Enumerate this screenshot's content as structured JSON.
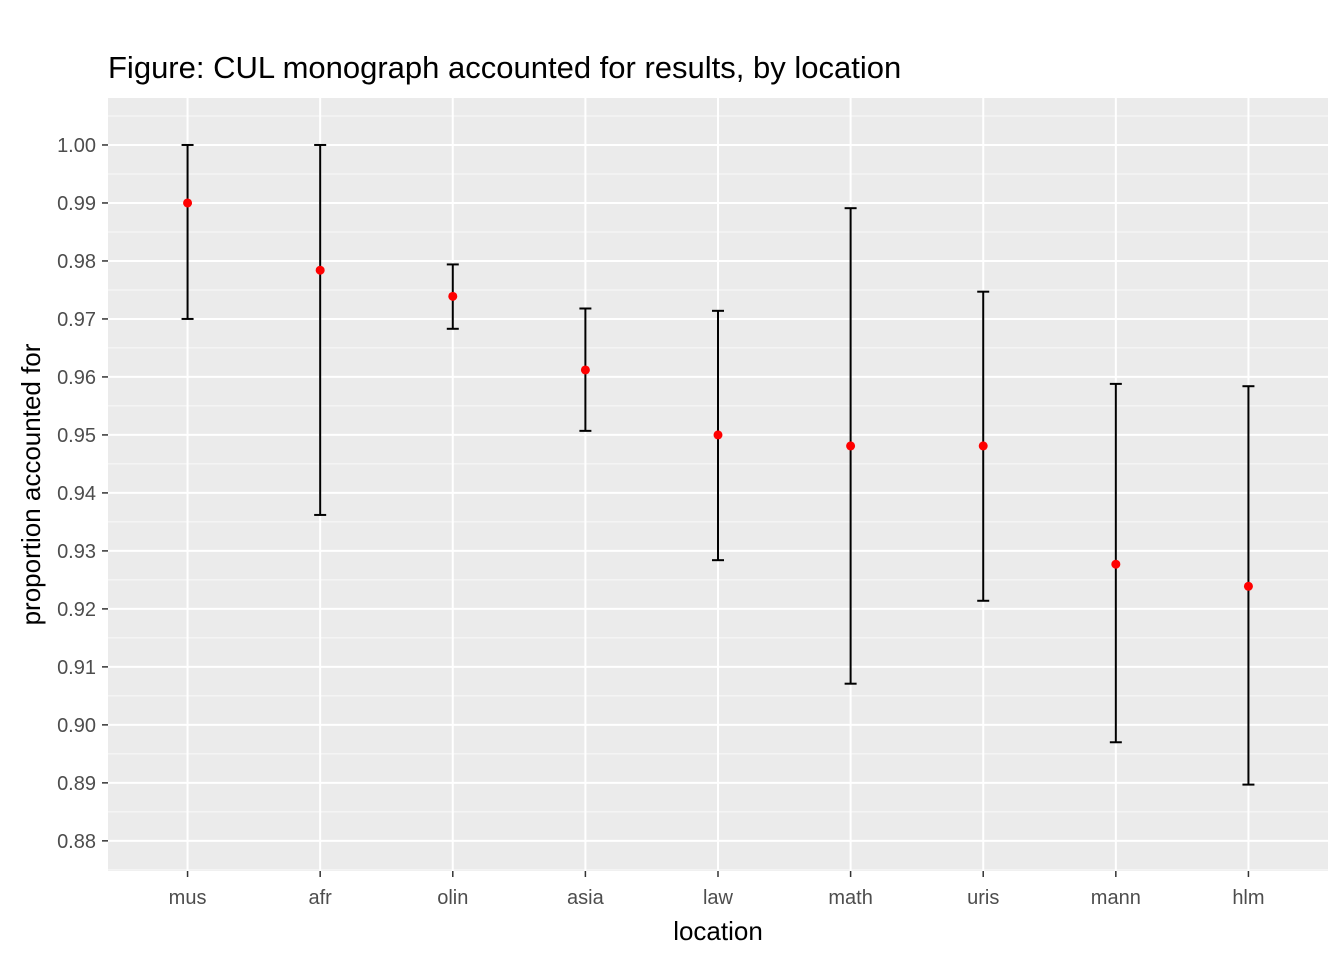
{
  "chart_data": {
    "type": "errorbar",
    "title": "Figure: CUL monograph accounted for results, by location",
    "xlabel": "location",
    "ylabel": "proportion accounted for",
    "categories": [
      "mus",
      "afr",
      "olin",
      "asia",
      "law",
      "math",
      "uris",
      "mann",
      "hlm"
    ],
    "values": [
      0.99,
      0.9784,
      0.9739,
      0.9612,
      0.95,
      0.9481,
      0.9481,
      0.9277,
      0.9239
    ],
    "lower": [
      0.97,
      0.9362,
      0.9683,
      0.9507,
      0.9284,
      0.9071,
      0.9214,
      0.897,
      0.8897
    ],
    "upper": [
      1.0,
      1.0,
      0.9794,
      0.9718,
      0.9714,
      0.9891,
      0.9747,
      0.9588,
      0.9584
    ],
    "ylim": [
      0.8748,
      1.0081
    ],
    "yticks": [
      "0.88",
      "0.89",
      "0.90",
      "0.91",
      "0.92",
      "0.93",
      "0.94",
      "0.95",
      "0.96",
      "0.97",
      "0.98",
      "0.99",
      "1.00"
    ],
    "grid": true,
    "legend": "none",
    "colors": {
      "panel": "#ebebeb",
      "gridline": "#ffffff",
      "point": "#ff0000",
      "errorbar": "#000000",
      "tick_label": "#4d4d4d"
    }
  }
}
